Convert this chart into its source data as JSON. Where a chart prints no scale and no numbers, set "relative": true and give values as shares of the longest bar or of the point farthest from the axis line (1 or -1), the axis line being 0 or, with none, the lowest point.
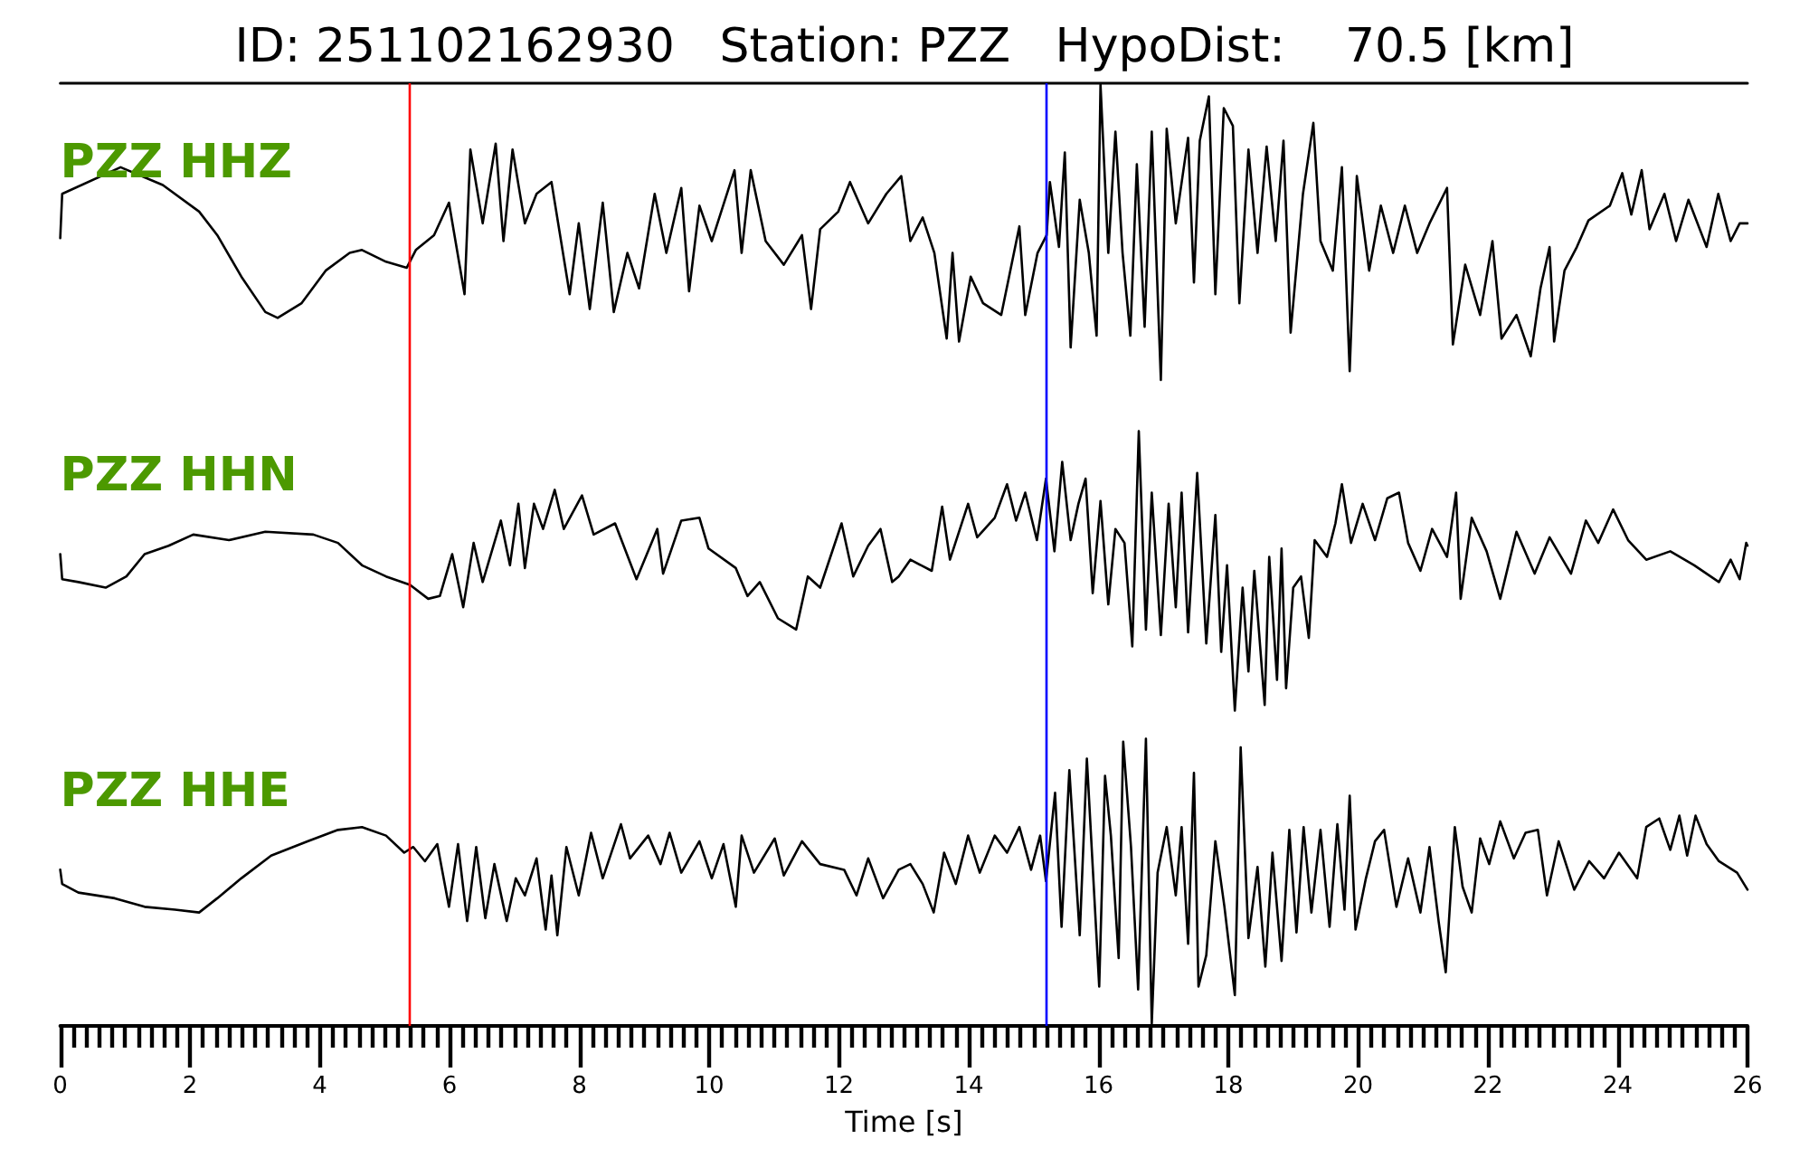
{
  "chart_data": [
    {
      "type": "line",
      "title": "ID: 251102162930   Station: PZZ   HypoDist:    70.5 [km]",
      "annotations": [
        "PZZ HHZ"
      ],
      "relative": true,
      "xlim": [
        0,
        26
      ],
      "tick_labels": false,
      "ref_lines": [
        {
          "axis": "x",
          "value": 5.37,
          "color": "#ff0000"
        },
        {
          "axis": "x",
          "value": 15.2,
          "color": "#0000ff"
        }
      ],
      "series": [
        {
          "color": "#000000",
          "x": [
            0,
            0.03,
            0.93,
            1.58,
            2.14,
            2.42,
            2.79,
            3.16,
            3.35,
            3.72,
            4.09,
            4.46,
            4.65,
            5.02,
            5.34,
            5.48,
            5.76,
            5.99,
            6.23,
            6.32,
            6.51,
            6.71,
            6.83,
            6.97,
            7.16,
            7.34,
            7.57,
            7.85,
            7.99,
            8.16,
            8.36,
            8.53,
            8.74,
            8.92,
            9.16,
            9.34,
            9.57,
            9.69,
            9.85,
            10.04,
            10.39,
            10.5,
            10.64,
            10.87,
            11.15,
            11.43,
            11.57,
            11.71,
            11.99,
            12.17,
            12.45,
            12.73,
            12.96,
            13.1,
            13.29,
            13.47,
            13.66,
            13.75,
            13.85,
            14.03,
            14.22,
            14.5,
            14.78,
            14.87,
            15.06,
            15.2,
            15.25,
            15.39,
            15.48,
            15.57,
            15.71,
            15.85,
            15.97,
            16.03,
            16.15,
            16.26,
            16.37,
            16.49,
            16.59,
            16.71,
            16.82,
            16.96,
            17.05,
            17.19,
            17.38,
            17.47,
            17.56,
            17.7,
            17.8,
            17.93,
            18.07,
            18.17,
            18.31,
            18.45,
            18.59,
            18.73,
            18.85,
            18.96,
            19.15,
            19.31,
            19.42,
            19.61,
            19.75,
            19.87,
            19.98,
            20.17,
            20.35,
            20.54,
            20.72,
            20.91,
            21.1,
            21.37,
            21.46,
            21.65,
            21.88,
            22.07,
            22.21,
            22.44,
            22.66,
            22.81,
            22.95,
            23.02,
            23.18,
            23.37,
            23.55,
            23.88,
            24.07,
            24.21,
            24.37,
            24.49,
            24.72,
            24.9,
            25.09,
            25.37,
            25.55,
            25.74,
            25.88,
            26
          ],
          "values": [
            0.48,
            0.63,
            0.72,
            0.66,
            0.57,
            0.49,
            0.35,
            0.23,
            0.21,
            0.26,
            0.37,
            0.43,
            0.44,
            0.4,
            0.38,
            0.44,
            0.49,
            0.6,
            0.29,
            0.78,
            0.53,
            0.8,
            0.47,
            0.78,
            0.53,
            0.63,
            0.67,
            0.29,
            0.53,
            0.24,
            0.6,
            0.23,
            0.43,
            0.31,
            0.63,
            0.43,
            0.65,
            0.3,
            0.59,
            0.47,
            0.71,
            0.43,
            0.71,
            0.47,
            0.39,
            0.49,
            0.24,
            0.51,
            0.57,
            0.67,
            0.53,
            0.63,
            0.69,
            0.47,
            0.55,
            0.43,
            0.14,
            0.43,
            0.13,
            0.35,
            0.26,
            0.22,
            0.52,
            0.22,
            0.43,
            0.49,
            0.67,
            0.45,
            0.77,
            0.11,
            0.61,
            0.43,
            0.15,
            1,
            0.43,
            0.84,
            0.43,
            0.15,
            0.73,
            0.18,
            0.84,
            0,
            0.85,
            0.53,
            0.82,
            0.33,
            0.81,
            0.96,
            0.29,
            0.92,
            0.86,
            0.26,
            0.78,
            0.43,
            0.79,
            0.47,
            0.81,
            0.16,
            0.63,
            0.87,
            0.47,
            0.37,
            0.72,
            0.03,
            0.69,
            0.37,
            0.59,
            0.43,
            0.59,
            0.43,
            0.53,
            0.65,
            0.12,
            0.39,
            0.22,
            0.47,
            0.14,
            0.22,
            0.08,
            0.31,
            0.45,
            0.13,
            0.37,
            0.45,
            0.54,
            0.59,
            0.7,
            0.56,
            0.71,
            0.51,
            0.63,
            0.47,
            0.61,
            0.45,
            0.63,
            0.47,
            0.53,
            0.53
          ]
        }
      ]
    },
    {
      "type": "line",
      "annotations": [
        "PZZ HHN"
      ],
      "relative": true,
      "xlim": [
        0,
        26
      ],
      "tick_labels": false,
      "ref_lines": [
        {
          "axis": "x",
          "value": 5.37,
          "color": "#ff0000"
        },
        {
          "axis": "x",
          "value": 15.2,
          "color": "#0000ff"
        }
      ],
      "series": [
        {
          "color": "#000000",
          "x": [
            0,
            0.03,
            0.28,
            0.7,
            1.02,
            1.3,
            1.67,
            2.05,
            2.6,
            3.16,
            3.9,
            4.28,
            4.65,
            5.02,
            5.39,
            5.67,
            5.85,
            6.04,
            6.21,
            6.37,
            6.51,
            6.79,
            6.93,
            7.06,
            7.16,
            7.3,
            7.44,
            7.62,
            7.76,
            8.04,
            8.22,
            8.55,
            8.88,
            9.2,
            9.29,
            9.57,
            9.85,
            9.99,
            10.41,
            10.59,
            10.78,
            11.06,
            11.34,
            11.52,
            11.71,
            12.04,
            12.22,
            12.45,
            12.64,
            12.82,
            12.92,
            13.1,
            13.43,
            13.59,
            13.71,
            13.99,
            14.13,
            14.4,
            14.59,
            14.73,
            14.87,
            15.05,
            15.19,
            15.32,
            15.44,
            15.57,
            15.69,
            15.8,
            15.91,
            16.03,
            16.15,
            16.26,
            16.4,
            16.52,
            16.62,
            16.73,
            16.82,
            16.96,
            17.08,
            17.19,
            17.28,
            17.38,
            17.52,
            17.66,
            17.8,
            17.89,
            17.98,
            18.1,
            18.22,
            18.31,
            18.4,
            18.56,
            18.63,
            18.75,
            18.82,
            18.89,
            19,
            19.12,
            19.24,
            19.33,
            19.52,
            19.65,
            19.75,
            19.89,
            20.07,
            20.26,
            20.45,
            20.63,
            20.77,
            20.96,
            21.14,
            21.37,
            21.51,
            21.58,
            21.75,
            21.98,
            22.19,
            22.44,
            22.72,
            22.95,
            23.28,
            23.51,
            23.7,
            23.93,
            24.16,
            24.44,
            24.81,
            25.18,
            25.56,
            25.74,
            25.88,
            25.98,
            26
          ],
          "values": [
            0.56,
            0.47,
            0.46,
            0.44,
            0.48,
            0.56,
            0.59,
            0.63,
            0.61,
            0.64,
            0.63,
            0.6,
            0.52,
            0.48,
            0.45,
            0.4,
            0.41,
            0.56,
            0.37,
            0.6,
            0.46,
            0.68,
            0.52,
            0.74,
            0.51,
            0.74,
            0.65,
            0.79,
            0.65,
            0.77,
            0.63,
            0.67,
            0.47,
            0.65,
            0.49,
            0.68,
            0.69,
            0.58,
            0.51,
            0.41,
            0.46,
            0.33,
            0.29,
            0.48,
            0.44,
            0.67,
            0.48,
            0.59,
            0.65,
            0.46,
            0.48,
            0.54,
            0.5,
            0.73,
            0.54,
            0.74,
            0.62,
            0.69,
            0.81,
            0.68,
            0.78,
            0.61,
            0.83,
            0.57,
            0.89,
            0.61,
            0.74,
            0.83,
            0.42,
            0.75,
            0.38,
            0.65,
            0.6,
            0.23,
            1,
            0.29,
            0.78,
            0.27,
            0.74,
            0.37,
            0.78,
            0.28,
            0.85,
            0.24,
            0.7,
            0.21,
            0.52,
            0,
            0.44,
            0.14,
            0.5,
            0.02,
            0.55,
            0.11,
            0.58,
            0.08,
            0.44,
            0.48,
            0.26,
            0.61,
            0.55,
            0.67,
            0.81,
            0.6,
            0.74,
            0.61,
            0.76,
            0.78,
            0.6,
            0.5,
            0.65,
            0.55,
            0.78,
            0.4,
            0.69,
            0.57,
            0.4,
            0.64,
            0.49,
            0.62,
            0.49,
            0.68,
            0.6,
            0.72,
            0.61,
            0.54,
            0.57,
            0.52,
            0.46,
            0.54,
            0.47,
            0.6,
            0.59
          ]
        }
      ]
    },
    {
      "type": "line",
      "annotations": [
        "PZZ HHE"
      ],
      "relative": true,
      "xlim": [
        0,
        26
      ],
      "tick_labels": "x",
      "xlabel": "Time [s]",
      "xticks": [
        0,
        {
          "value": 0.2,
          "label": null
        },
        {
          "value": 0.4,
          "label": null
        },
        {
          "value": 0.6,
          "label": null
        },
        {
          "value": 0.8,
          "label": null
        },
        {
          "value": 1,
          "label": null
        },
        {
          "value": 1.2,
          "label": null
        },
        {
          "value": 1.4,
          "label": null
        },
        {
          "value": 1.6,
          "label": null
        },
        {
          "value": 1.8,
          "label": null
        },
        2,
        {
          "value": 2.2,
          "label": null
        },
        {
          "value": 2.4,
          "label": null
        },
        {
          "value": 2.6,
          "label": null
        },
        {
          "value": 2.8,
          "label": null
        },
        {
          "value": 3,
          "label": null
        },
        {
          "value": 3.2,
          "label": null
        },
        {
          "value": 3.4,
          "label": null
        },
        {
          "value": 3.6,
          "label": null
        },
        {
          "value": 3.8,
          "label": null
        },
        4,
        {
          "value": 4.2,
          "label": null
        },
        {
          "value": 4.4,
          "label": null
        },
        {
          "value": 4.6,
          "label": null
        },
        {
          "value": 4.8,
          "label": null
        },
        {
          "value": 5,
          "label": null
        },
        {
          "value": 5.2,
          "label": null
        },
        {
          "value": 5.4,
          "label": null
        },
        {
          "value": 5.6,
          "label": null
        },
        {
          "value": 5.8,
          "label": null
        },
        6,
        {
          "value": 6.2,
          "label": null
        },
        {
          "value": 6.4,
          "label": null
        },
        {
          "value": 6.6,
          "label": null
        },
        {
          "value": 6.8,
          "label": null
        },
        {
          "value": 7,
          "label": null
        },
        {
          "value": 7.2,
          "label": null
        },
        {
          "value": 7.4,
          "label": null
        },
        {
          "value": 7.6,
          "label": null
        },
        {
          "value": 7.8,
          "label": null
        },
        8,
        {
          "value": 8.2,
          "label": null
        },
        {
          "value": 8.4,
          "label": null
        },
        {
          "value": 8.6,
          "label": null
        },
        {
          "value": 8.8,
          "label": null
        },
        {
          "value": 9,
          "label": null
        },
        {
          "value": 9.2,
          "label": null
        },
        {
          "value": 9.4,
          "label": null
        },
        {
          "value": 9.6,
          "label": null
        },
        {
          "value": 9.8,
          "label": null
        },
        10,
        {
          "value": 10.2,
          "label": null
        },
        {
          "value": 10.4,
          "label": null
        },
        {
          "value": 10.6,
          "label": null
        },
        {
          "value": 10.8,
          "label": null
        },
        {
          "value": 11,
          "label": null
        },
        {
          "value": 11.2,
          "label": null
        },
        {
          "value": 11.4,
          "label": null
        },
        {
          "value": 11.6,
          "label": null
        },
        {
          "value": 11.8,
          "label": null
        },
        12,
        {
          "value": 12.2,
          "label": null
        },
        {
          "value": 12.4,
          "label": null
        },
        {
          "value": 12.6,
          "label": null
        },
        {
          "value": 12.8,
          "label": null
        },
        {
          "value": 13,
          "label": null
        },
        {
          "value": 13.2,
          "label": null
        },
        {
          "value": 13.4,
          "label": null
        },
        {
          "value": 13.6,
          "label": null
        },
        {
          "value": 13.8,
          "label": null
        },
        14,
        {
          "value": 14.2,
          "label": null
        },
        {
          "value": 14.4,
          "label": null
        },
        {
          "value": 14.6,
          "label": null
        },
        {
          "value": 14.8,
          "label": null
        },
        {
          "value": 15,
          "label": null
        },
        {
          "value": 15.2,
          "label": null
        },
        {
          "value": 15.4,
          "label": null
        },
        {
          "value": 15.6,
          "label": null
        },
        {
          "value": 15.8,
          "label": null
        },
        16,
        {
          "value": 16.2,
          "label": null
        },
        {
          "value": 16.4,
          "label": null
        },
        {
          "value": 16.6,
          "label": null
        },
        {
          "value": 16.8,
          "label": null
        },
        {
          "value": 17,
          "label": null
        },
        {
          "value": 17.2,
          "label": null
        },
        {
          "value": 17.4,
          "label": null
        },
        {
          "value": 17.6,
          "label": null
        },
        {
          "value": 17.8,
          "label": null
        },
        18,
        {
          "value": 18.2,
          "label": null
        },
        {
          "value": 18.4,
          "label": null
        },
        {
          "value": 18.6,
          "label": null
        },
        {
          "value": 18.8,
          "label": null
        },
        {
          "value": 19,
          "label": null
        },
        {
          "value": 19.2,
          "label": null
        },
        {
          "value": 19.4,
          "label": null
        },
        {
          "value": 19.6,
          "label": null
        },
        {
          "value": 19.8,
          "label": null
        },
        20,
        {
          "value": 20.2,
          "label": null
        },
        {
          "value": 20.4,
          "label": null
        },
        {
          "value": 20.6,
          "label": null
        },
        {
          "value": 20.8,
          "label": null
        },
        {
          "value": 21,
          "label": null
        },
        {
          "value": 21.2,
          "label": null
        },
        {
          "value": 21.4,
          "label": null
        },
        {
          "value": 21.6,
          "label": null
        },
        {
          "value": 21.8,
          "label": null
        },
        22,
        {
          "value": 22.2,
          "label": null
        },
        {
          "value": 22.4,
          "label": null
        },
        {
          "value": 22.6,
          "label": null
        },
        {
          "value": 22.8,
          "label": null
        },
        {
          "value": 23,
          "label": null
        },
        {
          "value": 23.2,
          "label": null
        },
        {
          "value": 23.4,
          "label": null
        },
        {
          "value": 23.6,
          "label": null
        },
        {
          "value": 23.8,
          "label": null
        },
        24,
        {
          "value": 24.2,
          "label": null
        },
        {
          "value": 24.4,
          "label": null
        },
        {
          "value": 24.6,
          "label": null
        },
        {
          "value": 24.8,
          "label": null
        },
        {
          "value": 25,
          "label": null
        },
        {
          "value": 25.2,
          "label": null
        },
        {
          "value": 25.4,
          "label": null
        },
        {
          "value": 25.6,
          "label": null
        },
        {
          "value": 25.8,
          "label": null
        },
        26
      ],
      "ref_lines": [
        {
          "axis": "x",
          "value": 5.37,
          "color": "#ff0000"
        },
        {
          "axis": "x",
          "value": 15.2,
          "color": "#0000ff"
        }
      ],
      "series": [
        {
          "color": "#000000",
          "x": [
            0,
            0.03,
            0.28,
            0.84,
            1.3,
            1.77,
            2.14,
            2.42,
            2.79,
            3.25,
            3.81,
            4.28,
            4.65,
            5.02,
            5.3,
            5.44,
            5.62,
            5.81,
            5.99,
            6.13,
            6.27,
            6.41,
            6.55,
            6.69,
            6.88,
            7.02,
            7.16,
            7.34,
            7.48,
            7.57,
            7.66,
            7.8,
            7.99,
            8.18,
            8.36,
            8.64,
            8.78,
            9.06,
            9.25,
            9.39,
            9.57,
            9.85,
            10.04,
            10.22,
            10.41,
            10.5,
            10.69,
            11.01,
            11.15,
            11.43,
            11.71,
            12.08,
            12.27,
            12.45,
            12.68,
            12.92,
            13.1,
            13.29,
            13.46,
            13.62,
            13.8,
            13.99,
            14.17,
            14.4,
            14.59,
            14.78,
            14.96,
            15.1,
            15.19,
            15.33,
            15.43,
            15.55,
            15.71,
            15.82,
            16.01,
            16.1,
            16.19,
            16.31,
            16.38,
            16.5,
            16.61,
            16.73,
            16.82,
            16.91,
            17.05,
            17.19,
            17.28,
            17.38,
            17.47,
            17.54,
            17.66,
            17.8,
            17.94,
            18.1,
            18.19,
            18.31,
            18.45,
            18.57,
            18.68,
            18.82,
            18.94,
            19.05,
            19.16,
            19.28,
            19.42,
            19.56,
            19.68,
            19.79,
            19.87,
            19.96,
            20.12,
            20.26,
            20.4,
            20.59,
            20.77,
            20.96,
            21.1,
            21.24,
            21.35,
            21.49,
            21.61,
            21.75,
            21.88,
            22.02,
            22.19,
            22.4,
            22.58,
            22.77,
            22.91,
            23.09,
            23.33,
            23.56,
            23.79,
            24.02,
            24.3,
            24.44,
            24.64,
            24.81,
            24.95,
            25.07,
            25.2,
            25.37,
            25.56,
            25.84,
            26
          ],
          "values": [
            0.54,
            0.49,
            0.46,
            0.44,
            0.41,
            0.4,
            0.39,
            0.44,
            0.51,
            0.59,
            0.64,
            0.68,
            0.69,
            0.66,
            0.6,
            0.62,
            0.57,
            0.63,
            0.41,
            0.63,
            0.36,
            0.62,
            0.37,
            0.56,
            0.36,
            0.51,
            0.45,
            0.58,
            0.33,
            0.52,
            0.31,
            0.62,
            0.45,
            0.67,
            0.51,
            0.7,
            0.58,
            0.66,
            0.56,
            0.67,
            0.53,
            0.64,
            0.51,
            0.63,
            0.41,
            0.66,
            0.53,
            0.65,
            0.52,
            0.64,
            0.56,
            0.54,
            0.45,
            0.58,
            0.44,
            0.54,
            0.56,
            0.49,
            0.39,
            0.6,
            0.49,
            0.66,
            0.53,
            0.66,
            0.6,
            0.69,
            0.54,
            0.66,
            0.5,
            0.81,
            0.34,
            0.89,
            0.31,
            0.93,
            0.13,
            0.87,
            0.66,
            0.23,
            0.99,
            0.62,
            0.12,
            1,
            0,
            0.53,
            0.69,
            0.45,
            0.69,
            0.28,
            0.88,
            0.13,
            0.24,
            0.64,
            0.41,
            0.1,
            0.97,
            0.3,
            0.55,
            0.2,
            0.6,
            0.22,
            0.68,
            0.32,
            0.69,
            0.39,
            0.68,
            0.34,
            0.7,
            0.4,
            0.8,
            0.33,
            0.51,
            0.64,
            0.68,
            0.41,
            0.58,
            0.39,
            0.62,
            0.36,
            0.18,
            0.69,
            0.48,
            0.39,
            0.65,
            0.56,
            0.71,
            0.58,
            0.67,
            0.68,
            0.45,
            0.64,
            0.47,
            0.57,
            0.51,
            0.6,
            0.51,
            0.69,
            0.72,
            0.61,
            0.73,
            0.59,
            0.73,
            0.63,
            0.57,
            0.53,
            0.47
          ]
        }
      ]
    }
  ]
}
